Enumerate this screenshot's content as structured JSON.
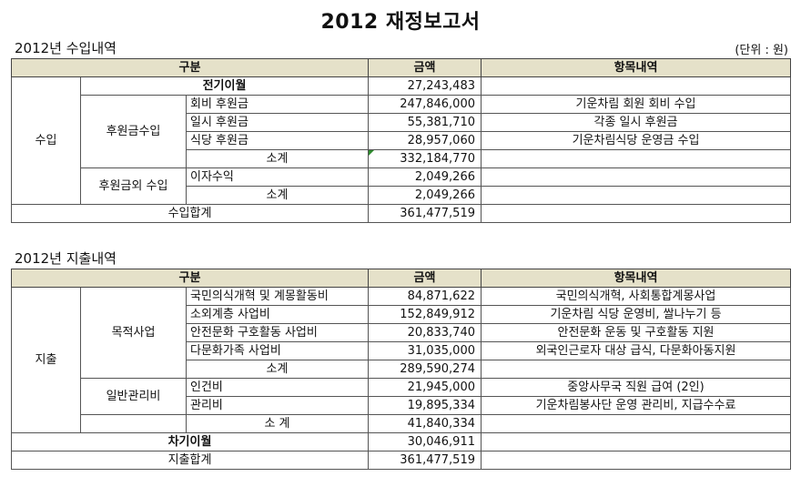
{
  "title": "2012 재정보고서",
  "income": {
    "section_title": "2012년 수입내역",
    "unit": "(단위 : 원)",
    "header": {
      "category": "구분",
      "amount": "금액",
      "detail": "항목내역"
    },
    "group_label": "수입",
    "carryover": {
      "label": "전기이월",
      "amount": "27,243,483",
      "detail": ""
    },
    "donation_group": "후원금수입",
    "donation_rows": [
      {
        "item": "회비 후원금",
        "amount": "247,846,000",
        "detail": "기운차림 회원 회비 수입"
      },
      {
        "item": "일시 후원금",
        "amount": "55,381,710",
        "detail": "각종 일시 후원금"
      },
      {
        "item": "식당 후원금",
        "amount": "28,957,060",
        "detail": "기운차림식당 운영금 수입"
      }
    ],
    "donation_subtotal": {
      "label": "소계",
      "amount": "332,184,770"
    },
    "other_group": "후원금외 수입",
    "other_rows": [
      {
        "item": "이자수익",
        "amount": "2,049,266",
        "detail": ""
      }
    ],
    "other_subtotal": {
      "label": "소계",
      "amount": "2,049,266"
    },
    "total": {
      "label": "수입합계",
      "amount": "361,477,519"
    }
  },
  "expense": {
    "section_title": "2012년 지출내역",
    "header": {
      "category": "구분",
      "amount": "금액",
      "detail": "항목내역"
    },
    "group_label": "지출",
    "purpose_group": "목적사업",
    "purpose_rows": [
      {
        "item": "국민의식개혁 및 계몽활동비",
        "amount": "84,871,622",
        "detail": "국민의식개혁, 사회통합계몽사업"
      },
      {
        "item": "소외계층 사업비",
        "amount": "152,849,912",
        "detail": "기운차림 식당 운영비, 쌀나누기 등"
      },
      {
        "item": "안전문화 구호활동 사업비",
        "amount": "20,833,740",
        "detail": "안전문화 운동 및 구호활동 지원"
      },
      {
        "item": "다문화가족 사업비",
        "amount": "31,035,000",
        "detail": "외국인근로자 대상 급식, 다문화아동지원"
      }
    ],
    "purpose_subtotal": {
      "label": "소계",
      "amount": "289,590,274"
    },
    "admin_group": "일반관리비",
    "admin_rows": [
      {
        "item": "인건비",
        "amount": "21,945,000",
        "detail": "중앙사무국 직원 급여 (2인)"
      },
      {
        "item": "관리비",
        "amount": "19,895,334",
        "detail": "기운차림봉사단 운영 관리비, 지급수수료"
      }
    ],
    "admin_subtotal": {
      "label": "소 계",
      "amount": "41,840,334"
    },
    "carryforward": {
      "label": "차기이월",
      "amount": "30,046,911"
    },
    "total": {
      "label": "지출합계",
      "amount": "361,477,519"
    }
  }
}
